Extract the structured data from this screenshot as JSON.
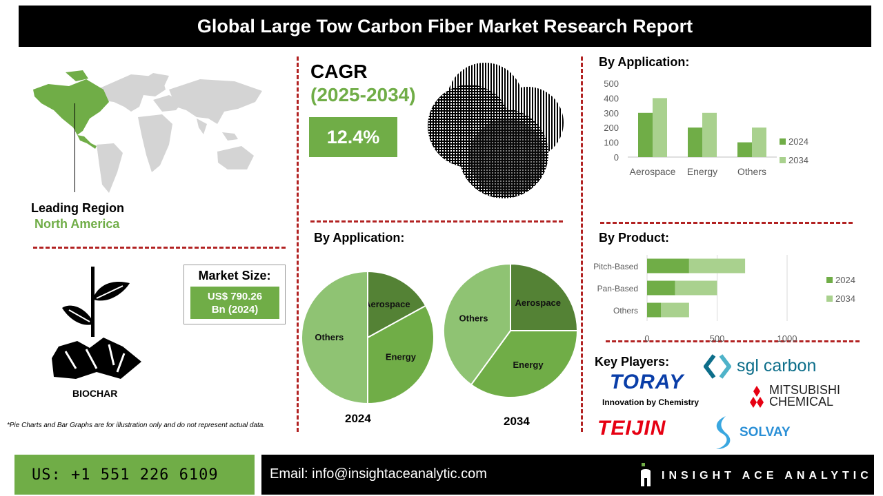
{
  "header": {
    "title": "Global Large Tow Carbon Fiber Market Research Report"
  },
  "region": {
    "label": "Leading Region",
    "value": "North America"
  },
  "cagr": {
    "label": "CAGR",
    "period": "(2025-2034)",
    "value": "12.4%"
  },
  "market_size": {
    "label": "Market Size:",
    "line1": "US$ 790.26",
    "line2": "Bn (2024)"
  },
  "biochar": {
    "label": "BIOCHAR"
  },
  "disclaimer": "*Pie Charts and Bar Graphs are for illustration only and do not represent actual data.",
  "sections": {
    "app_bar_title": "By Application:",
    "app_pie_title": "By Application:",
    "product_title": "By Product:",
    "key_players_title": "Key Players:"
  },
  "players": {
    "toray": "TORAY",
    "toray_tag": "Innovation by Chemistry",
    "sgl": "sgl carbon",
    "mitsubishi1": "MITSUBISHI",
    "mitsubishi2": "CHEMICAL",
    "teijin": "TEIJIN",
    "solvay": "SOLVAY"
  },
  "footer": {
    "phone": "US: +1 551 226 6109",
    "email": "Email: info@insightaceanalytic.com",
    "brand": "INSIGHT ACE ANALYTIC"
  },
  "colors": {
    "dark_green": "#548235",
    "mid_green": "#70ad47",
    "light_green": "#a9d18e",
    "pie_light": "#8fc373",
    "accent_red": "#b22222"
  },
  "chart_data": [
    {
      "type": "bar",
      "id": "application-bar",
      "categories": [
        "Aerospace",
        "Energy",
        "Others"
      ],
      "series": [
        {
          "name": "2024",
          "values": [
            300,
            200,
            100
          ]
        },
        {
          "name": "2034",
          "values": [
            400,
            300,
            200
          ]
        }
      ],
      "ylim": [
        0,
        500
      ],
      "yticks": [
        "0",
        "100",
        "200",
        "300",
        "400",
        "500"
      ],
      "legend": "right",
      "grid": false
    },
    {
      "type": "bar",
      "id": "product-bar",
      "orientation": "horizontal",
      "stacked": true,
      "categories": [
        "Pitch-Based",
        "Pan-Based",
        "Others"
      ],
      "series": [
        {
          "name": "2024",
          "values": [
            300,
            200,
            100
          ]
        },
        {
          "name": "2034",
          "values": [
            400,
            300,
            200
          ]
        }
      ],
      "xlim": [
        0,
        1000
      ],
      "xticks": [
        "0",
        "500",
        "1000"
      ],
      "legend": "right",
      "grid": true
    },
    {
      "type": "pie",
      "id": "pie-2024",
      "label": "2024",
      "categories": [
        "Aerospace",
        "Energy",
        "Others"
      ],
      "values": [
        17,
        33,
        50
      ]
    },
    {
      "type": "pie",
      "id": "pie-2034",
      "label": "2034",
      "categories": [
        "Aerospace",
        "Energy",
        "Others"
      ],
      "values": [
        25,
        35,
        40
      ]
    }
  ]
}
